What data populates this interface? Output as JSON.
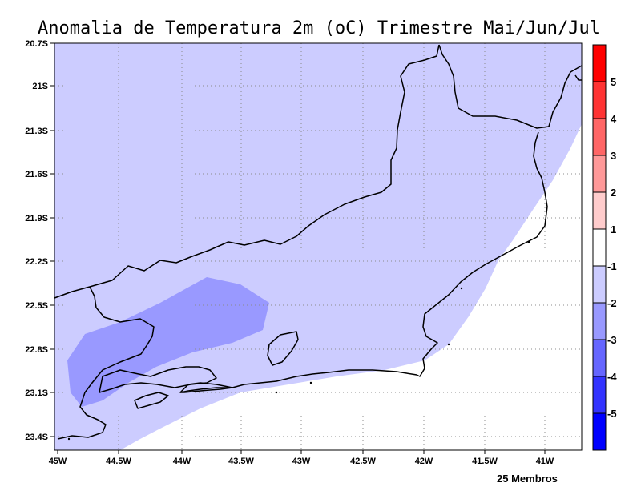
{
  "title": "Anomalia de Temperatura 2m (oC) Trimestre Mai/Jun/Jul",
  "footer": "25 Membros",
  "map": {
    "lat_ticks": [
      "20.7S",
      "21S",
      "21.3S",
      "21.6S",
      "21.9S",
      "22.2S",
      "22.5S",
      "22.8S",
      "23.1S",
      "23.4S"
    ],
    "lon_ticks": [
      "45W",
      "44.5W",
      "44W",
      "43.5W",
      "43W",
      "42.5W",
      "42W",
      "41.5W",
      "41W"
    ],
    "lon_range": [
      -45,
      -40.7
    ],
    "lat_range": [
      -23.5,
      -20.7
    ]
  },
  "colorbar": {
    "labels": [
      "5",
      "4",
      "3",
      "2",
      "1",
      "-1",
      "-2",
      "-3",
      "-4",
      "-5"
    ],
    "colors": [
      "#ff0000",
      "#ff3333",
      "#ff6666",
      "#ff9999",
      "#ffcccc",
      "#ffffff",
      "#ccccff",
      "#9999ff",
      "#6666ff",
      "#3333ff",
      "#0000ff"
    ]
  },
  "shading": {
    "outer_class": "-2 to -1",
    "inner_class": "-3 to -2",
    "outer_color": "#ccccff",
    "inner_color": "#9999ff"
  }
}
